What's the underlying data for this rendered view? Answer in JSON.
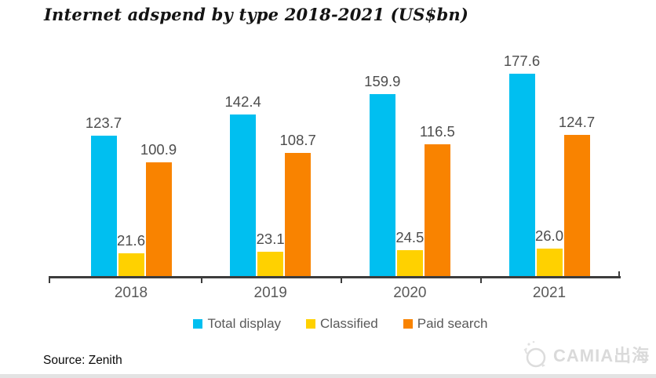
{
  "title": "Internet adspend by type 2018-2021 (US$bn)",
  "source_note": "Source: Zenith",
  "watermark": {
    "icon": "camia-globe-logo",
    "text": "CAMIA出海",
    "color": "#dadada"
  },
  "colors": {
    "total_display": "#00bff0",
    "classified": "#ffd100",
    "paid_search": "#f98300",
    "axis": "#3d3d3d",
    "label_gray": "#595959"
  },
  "legend": [
    {
      "label": "Total display",
      "color": "#00bff0"
    },
    {
      "label": "Classified",
      "color": "#ffd100"
    },
    {
      "label": "Paid search",
      "color": "#f98300"
    }
  ],
  "chart_data": {
    "type": "bar",
    "title": "Internet adspend by type 2018-2021 (US$bn)",
    "categories": [
      "2018",
      "2019",
      "2020",
      "2021"
    ],
    "series": [
      {
        "name": "Total display",
        "color": "#00bff0",
        "values": [
          123.7,
          142.4,
          159.9,
          177.6
        ]
      },
      {
        "name": "Classified",
        "color": "#ffd100",
        "values": [
          21.6,
          23.1,
          24.5,
          26.0
        ]
      },
      {
        "name": "Paid search",
        "color": "#f98300",
        "values": [
          100.9,
          108.7,
          116.5,
          124.7
        ]
      }
    ],
    "xlabel": "",
    "ylabel": "",
    "ylim": [
      0,
      190
    ],
    "grid": false,
    "legend_position": "bottom",
    "value_labels": true,
    "value_label_decimals": 1
  }
}
